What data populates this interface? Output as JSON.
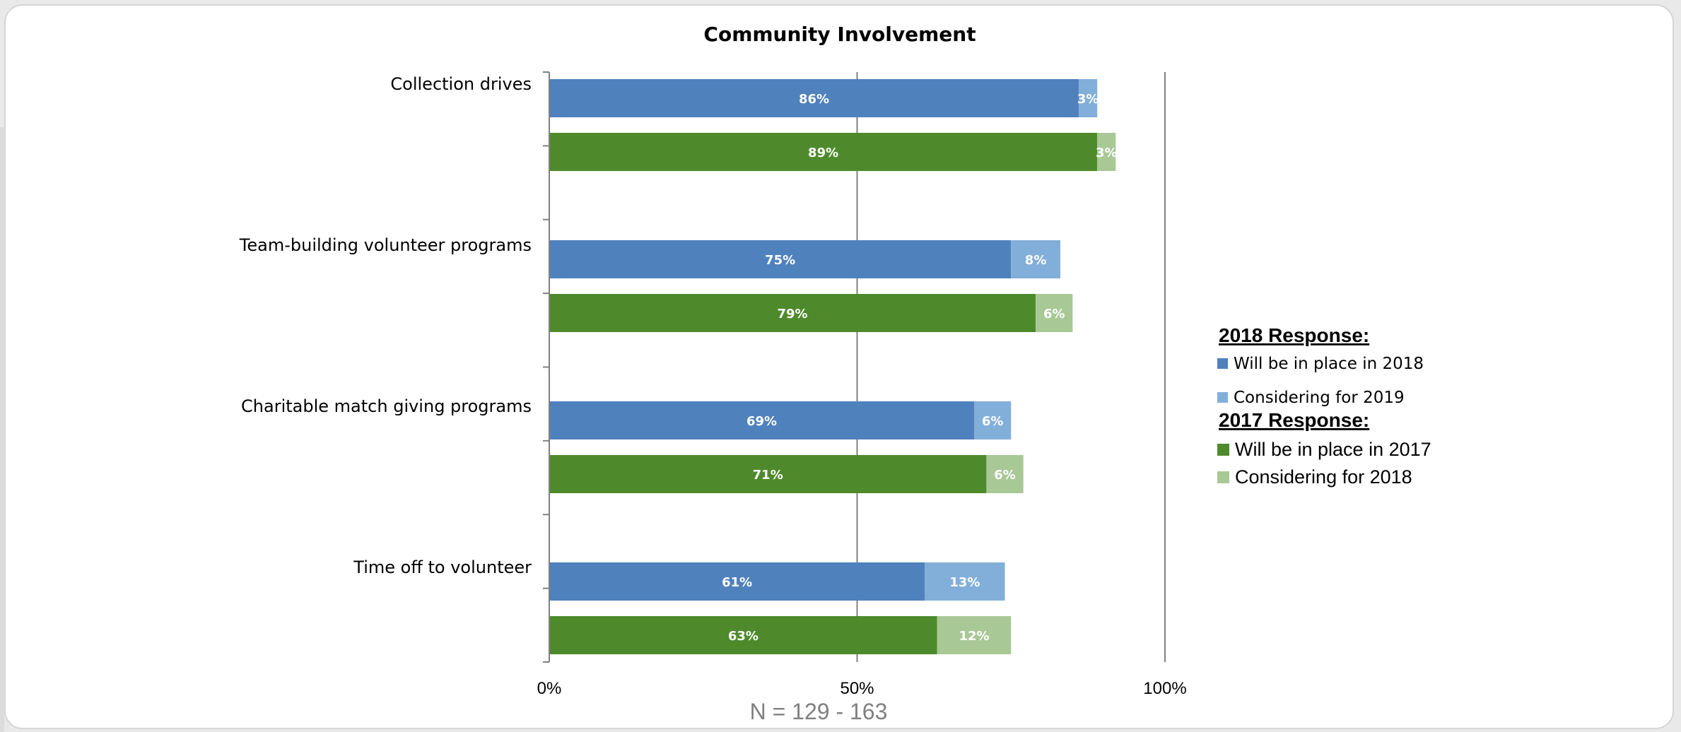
{
  "chart_data": {
    "type": "bar",
    "orientation": "horizontal",
    "stacked": true,
    "title": "Community Involvement",
    "categories": [
      "Collection drives",
      "Team-building volunteer programs",
      "Charitable match giving programs",
      "Time off to volunteer"
    ],
    "groups": [
      {
        "heading": "2018 Response:",
        "series": [
          {
            "name": "Will be in place in 2018",
            "color": "#4f81bd",
            "values": [
              86,
              75,
              69,
              61
            ]
          },
          {
            "name": "Considering for 2019",
            "color": "#82afd9",
            "values": [
              3,
              8,
              6,
              13
            ]
          }
        ]
      },
      {
        "heading": "2017 Response:",
        "series": [
          {
            "name": "Will be in place in 2017",
            "color": "#4e8a2c",
            "values": [
              89,
              79,
              71,
              63
            ]
          },
          {
            "name": "Considering for 2018",
            "color": "#a8c896",
            "values": [
              3,
              6,
              6,
              12
            ]
          }
        ]
      }
    ],
    "xlim": [
      0,
      100
    ],
    "x_ticks": [
      "0%",
      "50%",
      "100%"
    ],
    "value_suffix": "%",
    "note": "N = 129 - 163",
    "legend_position": "right"
  }
}
